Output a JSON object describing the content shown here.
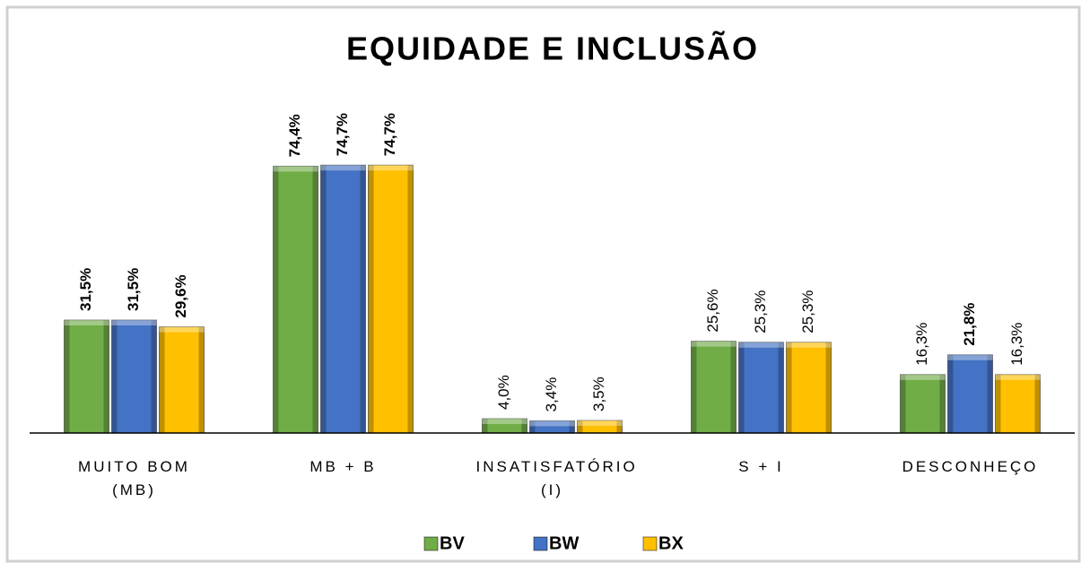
{
  "chart_data": {
    "type": "bar",
    "title": "EQUIDADE E INCLUSÃO",
    "categories": [
      "MUITO BOM (MB)",
      "MB + B",
      "INSATISFATÓRIO (I)",
      "S + I",
      "DESCONHEÇO"
    ],
    "series": [
      {
        "name": "BV",
        "color": "#70ad47",
        "values": [
          31.5,
          74.4,
          4.0,
          25.6,
          16.3
        ],
        "value_labels": [
          "31,5%",
          "74,4%",
          "4,0%",
          "25,6%",
          "16,3%"
        ]
      },
      {
        "name": "BW",
        "color": "#4472c4",
        "values": [
          31.5,
          74.7,
          3.4,
          25.3,
          21.8
        ],
        "value_labels": [
          "31,5%",
          "74,7%",
          "3,4%",
          "25,3%",
          "21,8%"
        ]
      },
      {
        "name": "BX",
        "color": "#ffc000",
        "values": [
          29.6,
          74.7,
          3.5,
          25.3,
          16.3
        ],
        "value_labels": [
          "29,6%",
          "74,7%",
          "3,5%",
          "25,3%",
          "16,3%"
        ]
      }
    ],
    "ylim": [
      0,
      80
    ],
    "legend": "bottom"
  }
}
